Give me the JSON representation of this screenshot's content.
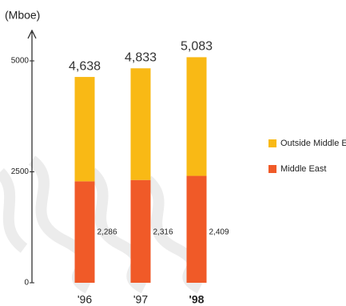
{
  "chart_data": {
    "type": "stacked_bar",
    "y_label": "(Mboe)",
    "categories": [
      "'96",
      "'97",
      "'98"
    ],
    "highlighted_category": 2,
    "series": [
      {
        "name": "Middle East",
        "color": "#f05a28",
        "values": [
          2286,
          2316,
          2409
        ],
        "value_labels": [
          "2,286",
          "2,316",
          "2,409"
        ]
      },
      {
        "name": "Outside Middle East",
        "color": "#f9b915",
        "values": [
          2352,
          2517,
          2674
        ]
      }
    ],
    "totals": [
      4638,
      4833,
      5083
    ],
    "total_labels": [
      "4,638",
      "4,833",
      "5,083"
    ],
    "ylim": [
      0,
      5650
    ],
    "yticks": [
      0,
      2500,
      5000
    ],
    "grid": false,
    "legend": "right"
  }
}
